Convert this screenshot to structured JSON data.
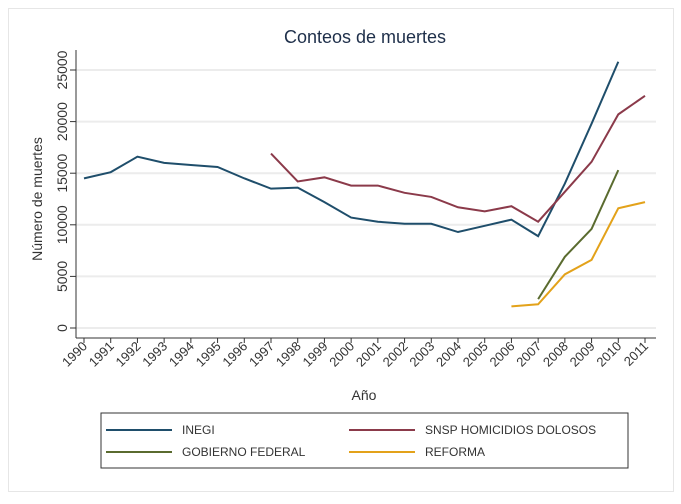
{
  "chart_data": {
    "type": "line",
    "title": "Conteos de muertes",
    "xlabel": "Año",
    "ylabel": "Número de muertes",
    "ylim": [
      0,
      26500
    ],
    "xlim": [
      1990,
      2011
    ],
    "yticks": [
      0,
      5000,
      10000,
      15000,
      20000,
      25000
    ],
    "xticks": [
      1990,
      1991,
      1992,
      1993,
      1994,
      1995,
      1996,
      1997,
      1998,
      1999,
      2000,
      2001,
      2002,
      2003,
      2004,
      2005,
      2006,
      2007,
      2008,
      2009,
      2010,
      2011
    ],
    "grid": true,
    "legend_position": "bottom",
    "series": [
      {
        "name": "INEGI",
        "color": "#1f4e6b",
        "x": [
          1990,
          1991,
          1992,
          1993,
          1994,
          1995,
          1996,
          1997,
          1998,
          1999,
          2000,
          2001,
          2002,
          2003,
          2004,
          2005,
          2006,
          2007,
          2008,
          2009,
          2010
        ],
        "values": [
          14500,
          15100,
          16600,
          16000,
          15800,
          15600,
          14500,
          13500,
          13600,
          12200,
          10700,
          10300,
          10100,
          10100,
          9300,
          9900,
          10500,
          8900,
          14000,
          19800,
          25800
        ]
      },
      {
        "name": "SNSP HOMICIDIOS DOLOSOS",
        "color": "#8b3a4a",
        "x": [
          1997,
          1998,
          1999,
          2000,
          2001,
          2002,
          2003,
          2004,
          2005,
          2006,
          2007,
          2008,
          2009,
          2010,
          2011
        ],
        "values": [
          16900,
          14200,
          14600,
          13800,
          13800,
          13100,
          12700,
          11700,
          11300,
          11800,
          10300,
          13200,
          16100,
          20700,
          22500
        ]
      },
      {
        "name": "GOBIERNO FEDERAL",
        "color": "#5a6b2f",
        "x": [
          2007,
          2008,
          2009,
          2010
        ],
        "values": [
          2800,
          6900,
          9600,
          15300
        ]
      },
      {
        "name": "REFORMA",
        "color": "#e3a21a",
        "x": [
          2006,
          2007,
          2008,
          2009,
          2010,
          2011
        ],
        "values": [
          2100,
          2300,
          5200,
          6600,
          11600,
          12200
        ]
      }
    ]
  }
}
